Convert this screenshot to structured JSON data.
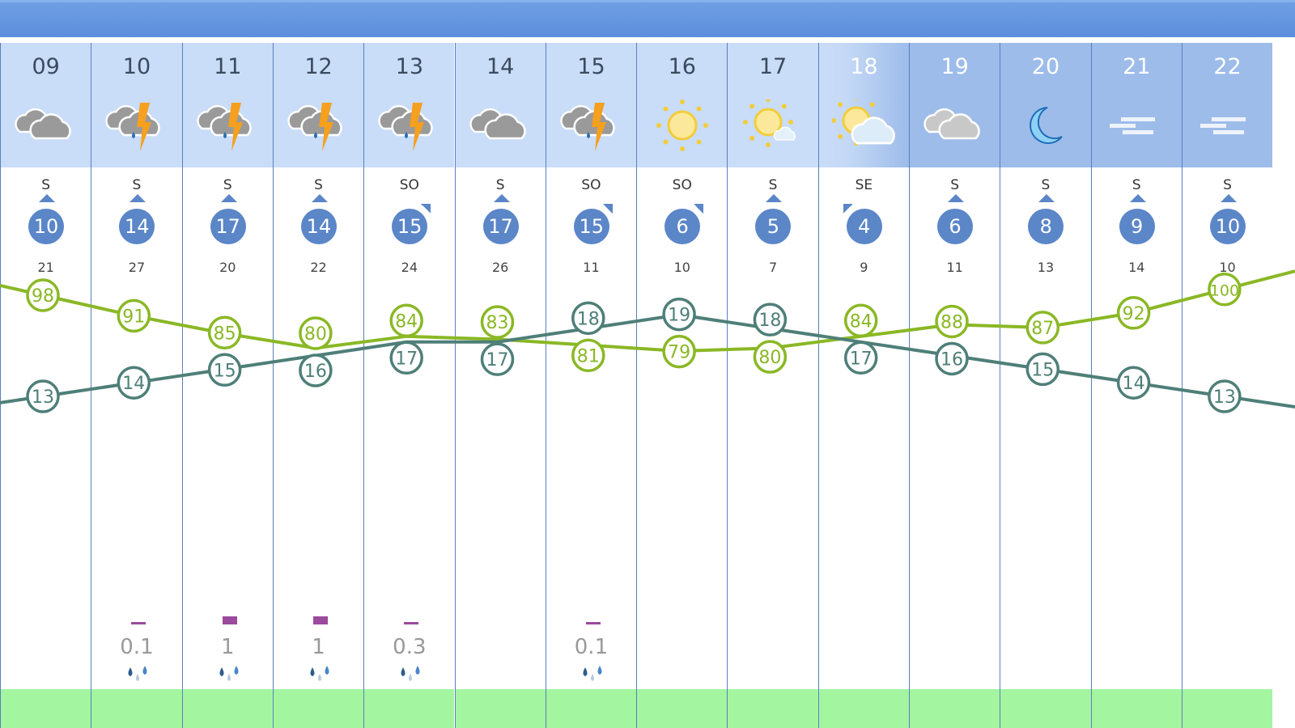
{
  "colors": {
    "humidity": "#8ab825",
    "temperature": "#4e7f78",
    "wind": "#5b86c8",
    "precip_bar": "#9b4a9e"
  },
  "hours": [
    {
      "hour": "09",
      "icon": "cloudy-icon",
      "wind_dir": "S",
      "wind_speed": "10",
      "gust": "21",
      "humidity": 98,
      "temp": 13,
      "precip": null,
      "theme": "light"
    },
    {
      "hour": "10",
      "icon": "thunderstorm-icon",
      "wind_dir": "S",
      "wind_speed": "14",
      "gust": "27",
      "humidity": 91,
      "temp": 14,
      "precip": "0.1",
      "theme": "light"
    },
    {
      "hour": "11",
      "icon": "thunderstorm-icon",
      "wind_dir": "S",
      "wind_speed": "17",
      "gust": "20",
      "humidity": 85,
      "temp": 15,
      "precip": "1",
      "theme": "light"
    },
    {
      "hour": "12",
      "icon": "thunderstorm-icon",
      "wind_dir": "S",
      "wind_speed": "14",
      "gust": "22",
      "humidity": 80,
      "temp": 16,
      "precip": "1",
      "theme": "light"
    },
    {
      "hour": "13",
      "icon": "thunderstorm-icon",
      "wind_dir": "SO",
      "wind_speed": "15",
      "gust": "24",
      "humidity": 84,
      "temp": 17,
      "precip": "0.3",
      "theme": "light"
    },
    {
      "hour": "14",
      "icon": "cloudy-icon",
      "wind_dir": "S",
      "wind_speed": "17",
      "gust": "26",
      "humidity": 83,
      "temp": 17,
      "precip": null,
      "theme": "light"
    },
    {
      "hour": "15",
      "icon": "thunderstorm-icon",
      "wind_dir": "SO",
      "wind_speed": "15",
      "gust": "11",
      "humidity": 81,
      "temp": 18,
      "precip": "0.1",
      "theme": "light"
    },
    {
      "hour": "16",
      "icon": "sun-icon",
      "wind_dir": "SO",
      "wind_speed": "6",
      "gust": "10",
      "humidity": 79,
      "temp": 19,
      "precip": null,
      "theme": "light"
    },
    {
      "hour": "17",
      "icon": "sun-small-cloud-icon",
      "wind_dir": "S",
      "wind_speed": "5",
      "gust": "7",
      "humidity": 80,
      "temp": 18,
      "precip": null,
      "theme": "light"
    },
    {
      "hour": "18",
      "icon": "sun-cloud-icon",
      "wind_dir": "SE",
      "wind_speed": "4",
      "gust": "9",
      "humidity": 84,
      "temp": 17,
      "precip": null,
      "theme": "trans"
    },
    {
      "hour": "19",
      "icon": "cloudy-night-icon",
      "wind_dir": "S",
      "wind_speed": "6",
      "gust": "11",
      "humidity": 88,
      "temp": 16,
      "precip": null,
      "theme": "dark"
    },
    {
      "hour": "20",
      "icon": "moon-icon",
      "wind_dir": "S",
      "wind_speed": "8",
      "gust": "13",
      "humidity": 87,
      "temp": 15,
      "precip": null,
      "theme": "dark"
    },
    {
      "hour": "21",
      "icon": "fog-icon",
      "wind_dir": "S",
      "wind_speed": "9",
      "gust": "14",
      "humidity": 92,
      "temp": 14,
      "precip": null,
      "theme": "dark"
    },
    {
      "hour": "22",
      "icon": "fog-icon",
      "wind_dir": "S",
      "wind_speed": "10",
      "gust": "10",
      "humidity": 100,
      "temp": 13,
      "precip": null,
      "theme": "dark"
    }
  ]
}
